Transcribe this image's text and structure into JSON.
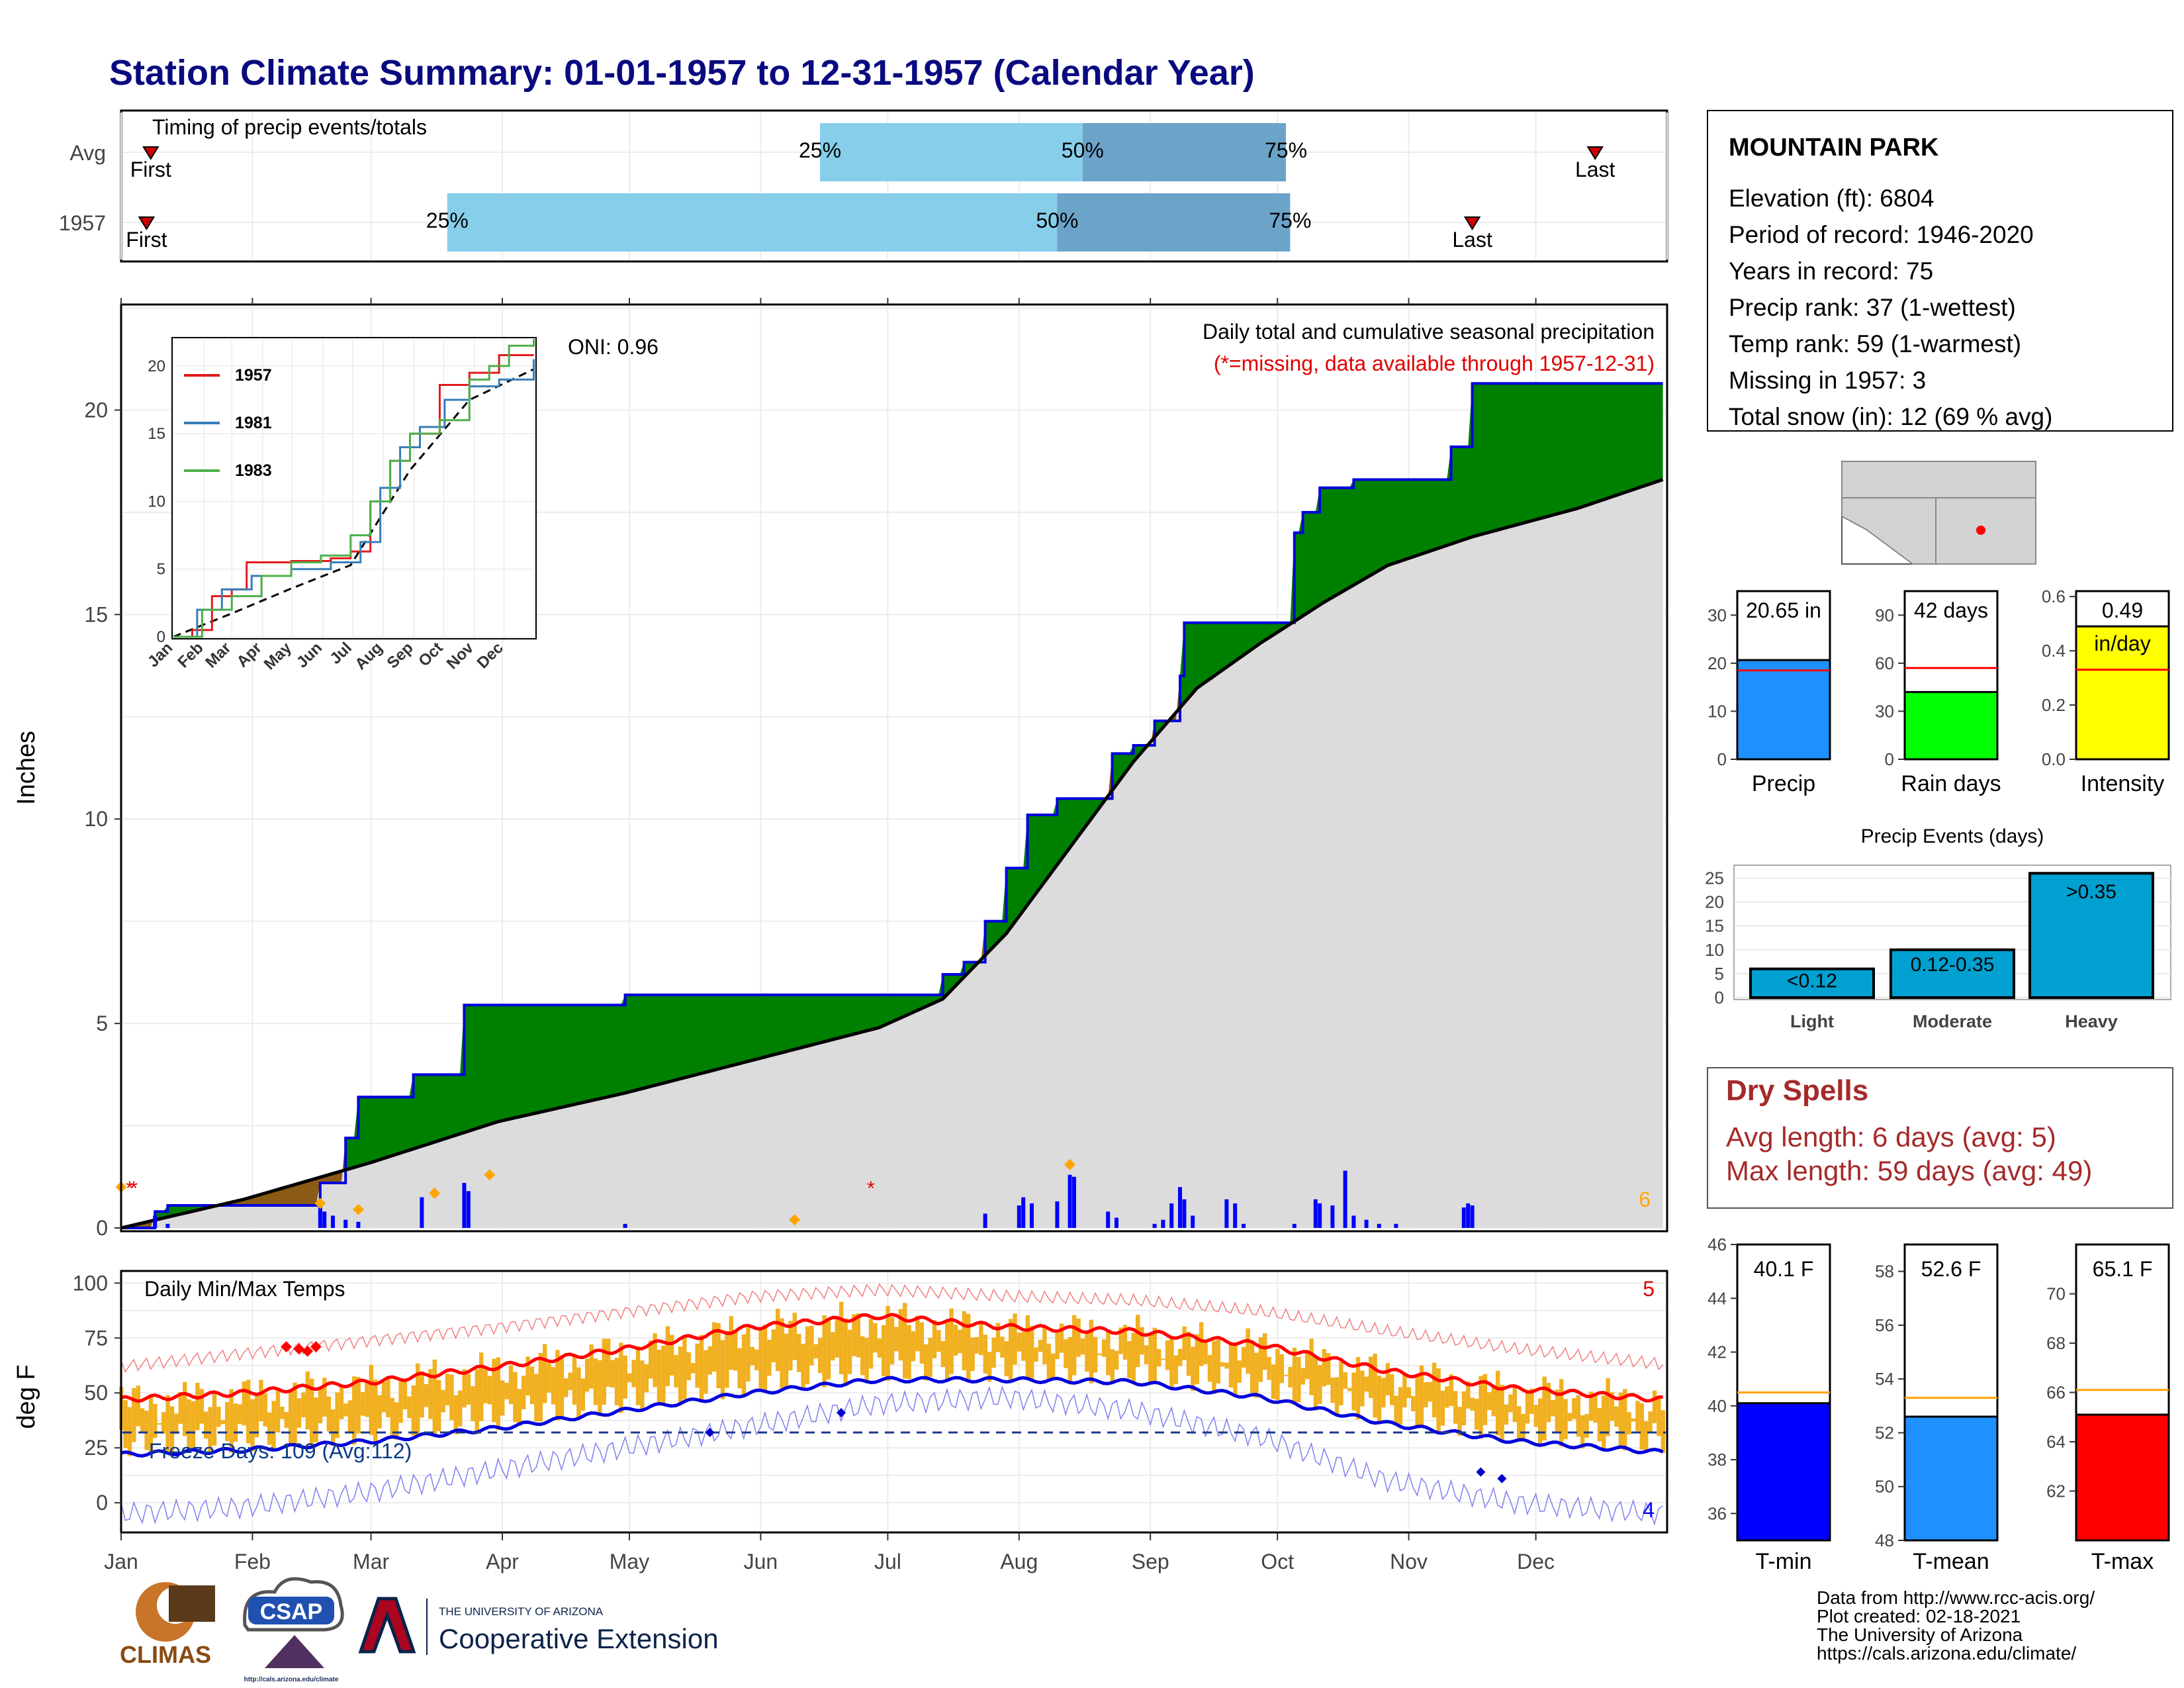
{
  "title": "Station Climate Summary: 01-01-1957 to 12-31-1957 (Calendar Year)",
  "months": [
    "Jan",
    "Feb",
    "Mar",
    "Apr",
    "May",
    "Jun",
    "Jul",
    "Aug",
    "Sep",
    "Oct",
    "Nov",
    "Dec"
  ],
  "timing": {
    "label": "Timing of precip events/totals",
    "rows": [
      {
        "name": "Avg",
        "first_doy": 8,
        "p25_doy": 166,
        "p50_doy": 228,
        "p75_doy": 276,
        "last_doy": 349,
        "first_label": "First",
        "last_label": "Last",
        "p25": "25%",
        "p50": "50%",
        "p75": "75%"
      },
      {
        "name": "1957",
        "first_doy": 7,
        "p25_doy": 78,
        "p50_doy": 222,
        "p75_doy": 277,
        "last_doy": 320,
        "first_label": "First",
        "last_label": "Last",
        "p25": "25%",
        "p50": "50%",
        "p75": "75%"
      }
    ]
  },
  "station": {
    "name": "MOUNTAIN PARK",
    "lines": [
      "Elevation (ft): 6804",
      "Period of record: 1946-2020",
      "Years in record: 75",
      "Precip rank: 37 (1-wettest)",
      "Temp rank: 59 (1-warmest)",
      "Missing in 1957: 3",
      "Total snow (in): 12 (69 % avg)"
    ]
  },
  "precip_panel": {
    "ylabel": "Inches",
    "oni": "ONI: 0.96",
    "subtitle": "Daily total and cumulative seasonal precipitation",
    "missing_note": "(*=missing, data available through 1957-12-31)",
    "corner_number": "6",
    "ylim": [
      0,
      22.5
    ],
    "yticks": [
      0,
      5,
      10,
      15,
      20
    ]
  },
  "inset": {
    "series": [
      {
        "name": "1957",
        "color": "#e41a1c"
      },
      {
        "name": "1981",
        "color": "#377eb8"
      },
      {
        "name": "1983",
        "color": "#4daf4a"
      }
    ],
    "yticks": [
      0,
      5,
      10,
      15,
      20
    ],
    "months": [
      "Jan",
      "Feb",
      "Mar",
      "Apr",
      "May",
      "Jun",
      "Jul",
      "Aug",
      "Sep",
      "Oct",
      "Nov",
      "Dec"
    ]
  },
  "temp_panel": {
    "ylabel": "deg F",
    "label": "Daily Min/Max Temps",
    "freeze": "Freeze Days: 109 (Avg:112)",
    "corner_top": "5",
    "corner_bottom": "4",
    "yticks": [
      0,
      25,
      50,
      75,
      100
    ],
    "ylim": [
      -12,
      104
    ]
  },
  "stats_bars": [
    {
      "label": "Precip",
      "value_text": "20.65 in",
      "value": 20.65,
      "avg": 18.5,
      "ymax": 35,
      "yticks": [
        0,
        10,
        20,
        30
      ],
      "color": "#1e90ff"
    },
    {
      "label": "Rain days",
      "value_text": "42 days",
      "value": 42,
      "avg": 57,
      "ymax": 105,
      "yticks": [
        0,
        30,
        60,
        90
      ],
      "color": "#00ff00"
    },
    {
      "label": "Intensity",
      "value_text": "0.49",
      "unit_text": "in/day",
      "value": 0.49,
      "avg": 0.33,
      "ymax": 0.62,
      "yticks": [
        "0.0",
        "0.2",
        "0.4",
        "0.6"
      ],
      "color": "#ffff00"
    }
  ],
  "events": {
    "title": "Precip Events (days)",
    "categories": [
      "Light",
      "Moderate",
      "Heavy"
    ],
    "bin_labels": [
      "<0.12",
      "0.12-0.35",
      ">0.35"
    ],
    "values": [
      6,
      10,
      26
    ],
    "yticks": [
      0,
      5,
      10,
      15,
      20,
      25
    ],
    "color": "#00a0d0"
  },
  "dry_spells": {
    "title": "Dry Spells",
    "avg": "Avg length: 6 days (avg: 5)",
    "max": "Max length: 59 days (avg: 49)"
  },
  "temp_bars": [
    {
      "label": "T-min",
      "value_text": "40.1 F",
      "value": 40.1,
      "avg": 40.5,
      "ymin": 35,
      "ymax": 46,
      "yticks": [
        36,
        38,
        40,
        42,
        44,
        46
      ],
      "color": "#0000ff"
    },
    {
      "label": "T-mean",
      "value_text": "52.6 F",
      "value": 52.6,
      "avg": 53.3,
      "ymin": 48,
      "ymax": 59,
      "yticks": [
        48,
        50,
        52,
        54,
        56,
        58
      ],
      "color": "#1e90ff"
    },
    {
      "label": "T-max",
      "value_text": "65.1 F",
      "value": 65.1,
      "avg": 66.1,
      "ymin": 60,
      "ymax": 72,
      "yticks": [
        62,
        64,
        66,
        68,
        70
      ],
      "color": "#ff0000"
    }
  ],
  "footer": {
    "lines": [
      "Data from http://www.rcc-acis.org/",
      "Plot created: 02-18-2021",
      "The University of Arizona",
      "https://cals.arizona.edu/climate/"
    ],
    "logo1": "CLIMAS",
    "logo2": "CSAP",
    "logo2_url": "http://cals.arizona.edu/climate",
    "ua_small": "THE UNIVERSITY OF ARIZONA",
    "ua_big": "Cooperative Extension"
  },
  "chart_data": [
    {
      "type": "area",
      "title": "Daily total and cumulative seasonal precipitation",
      "xlabel": "",
      "ylabel": "Inches",
      "ylim": [
        0,
        22.5
      ],
      "series": [
        {
          "name": "1957 cumulative",
          "x_doy": [
            1,
            9,
            12,
            40,
            48,
            54,
            57,
            70,
            82,
            120,
            155,
            190,
            195,
            200,
            205,
            210,
            215,
            222,
            235,
            240,
            245,
            251,
            252,
            270,
            272,
            278,
            280,
            284,
            292,
            315,
            320,
            328,
            365
          ],
          "values": [
            0,
            0.4,
            0.55,
            0.55,
            1.1,
            2.2,
            3.2,
            3.75,
            5.45,
            5.7,
            5.7,
            5.7,
            6.2,
            6.5,
            7.5,
            8.8,
            10.1,
            10.5,
            11.6,
            11.8,
            12.4,
            13.5,
            14.8,
            14.8,
            14.8,
            17.0,
            17.5,
            18.1,
            18.3,
            19.1,
            20.65,
            20.65,
            20.65
          ]
        },
        {
          "name": "Average cumulative",
          "x_doy": [
            1,
            30,
            60,
            90,
            120,
            150,
            180,
            195,
            210,
            225,
            240,
            255,
            270,
            285,
            300,
            320,
            345,
            365
          ],
          "values": [
            0,
            0.7,
            1.6,
            2.6,
            3.3,
            4.1,
            4.9,
            5.6,
            7.2,
            9.3,
            11.4,
            13.2,
            14.3,
            15.3,
            16.2,
            16.9,
            17.6,
            18.3
          ]
        }
      ],
      "daily_events": [
        {
          "doy": 9,
          "value": 0.3
        },
        {
          "doy": 12,
          "value": 0.1
        },
        {
          "doy": 48,
          "value": 0.55
        },
        {
          "doy": 49,
          "value": 0.4
        },
        {
          "doy": 51,
          "value": 0.3
        },
        {
          "doy": 54,
          "value": 0.2
        },
        {
          "doy": 57,
          "value": 0.15
        },
        {
          "doy": 72,
          "value": 0.75
        },
        {
          "doy": 82,
          "value": 1.1
        },
        {
          "doy": 83,
          "value": 0.9
        },
        {
          "doy": 120,
          "value": 0.1
        },
        {
          "doy": 205,
          "value": 0.35
        },
        {
          "doy": 213,
          "value": 0.55
        },
        {
          "doy": 214,
          "value": 0.75
        },
        {
          "doy": 216,
          "value": 0.6
        },
        {
          "doy": 222,
          "value": 0.65
        },
        {
          "doy": 225,
          "value": 1.3
        },
        {
          "doy": 226,
          "value": 1.25
        },
        {
          "doy": 234,
          "value": 0.4
        },
        {
          "doy": 236,
          "value": 0.25
        },
        {
          "doy": 245,
          "value": 0.1
        },
        {
          "doy": 247,
          "value": 0.2
        },
        {
          "doy": 249,
          "value": 0.6
        },
        {
          "doy": 251,
          "value": 1.0
        },
        {
          "doy": 252,
          "value": 0.7
        },
        {
          "doy": 254,
          "value": 0.3
        },
        {
          "doy": 262,
          "value": 0.7
        },
        {
          "doy": 264,
          "value": 0.6
        },
        {
          "doy": 266,
          "value": 0.1
        },
        {
          "doy": 278,
          "value": 0.1
        },
        {
          "doy": 283,
          "value": 0.7
        },
        {
          "doy": 284,
          "value": 0.6
        },
        {
          "doy": 287,
          "value": 0.55
        },
        {
          "doy": 290,
          "value": 1.4
        },
        {
          "doy": 292,
          "value": 0.3
        },
        {
          "doy": 295,
          "value": 0.2
        },
        {
          "doy": 298,
          "value": 0.1
        },
        {
          "doy": 302,
          "value": 0.1
        },
        {
          "doy": 318,
          "value": 0.5
        },
        {
          "doy": 319,
          "value": 0.6
        },
        {
          "doy": 320,
          "value": 0.55
        }
      ]
    },
    {
      "type": "line",
      "title": "Daily Min/Max Temps",
      "ylabel": "deg F",
      "ylim": [
        -12,
        104
      ],
      "series": [
        {
          "name": "Avg max",
          "x_doy": [
            1,
            30,
            60,
            90,
            120,
            150,
            180,
            210,
            240,
            270,
            300,
            330,
            365
          ],
          "values": [
            47,
            50,
            55,
            62,
            70,
            80,
            85,
            80,
            78,
            72,
            60,
            52,
            47
          ]
        },
        {
          "name": "Avg min",
          "x_doy": [
            1,
            30,
            60,
            90,
            120,
            150,
            180,
            210,
            240,
            270,
            300,
            330,
            365
          ],
          "values": [
            22,
            24,
            28,
            34,
            42,
            50,
            56,
            56,
            55,
            48,
            36,
            28,
            23
          ]
        },
        {
          "name": "Record max",
          "x_doy": [
            1,
            30,
            60,
            90,
            120,
            150,
            180,
            210,
            240,
            270,
            300,
            330,
            365
          ],
          "values": [
            62,
            68,
            74,
            80,
            87,
            94,
            97,
            94,
            92,
            87,
            78,
            70,
            63
          ]
        },
        {
          "name": "Record min",
          "x_doy": [
            1,
            30,
            60,
            90,
            120,
            150,
            180,
            210,
            240,
            270,
            300,
            330,
            365
          ],
          "values": [
            -5,
            -2,
            5,
            15,
            25,
            35,
            45,
            48,
            42,
            30,
            10,
            0,
            -5
          ]
        }
      ],
      "freeze_line": 32
    },
    {
      "type": "bar",
      "title": "Precip Events (days)",
      "categories": [
        "Light",
        "Moderate",
        "Heavy"
      ],
      "values": [
        6,
        10,
        26
      ]
    },
    {
      "type": "bar",
      "categories": [
        "Precip",
        "Rain days",
        "Intensity"
      ],
      "values": [
        20.65,
        42,
        0.49
      ]
    },
    {
      "type": "bar",
      "categories": [
        "T-min",
        "T-mean",
        "T-max"
      ],
      "values": [
        40.1,
        52.6,
        65.1
      ]
    }
  ]
}
